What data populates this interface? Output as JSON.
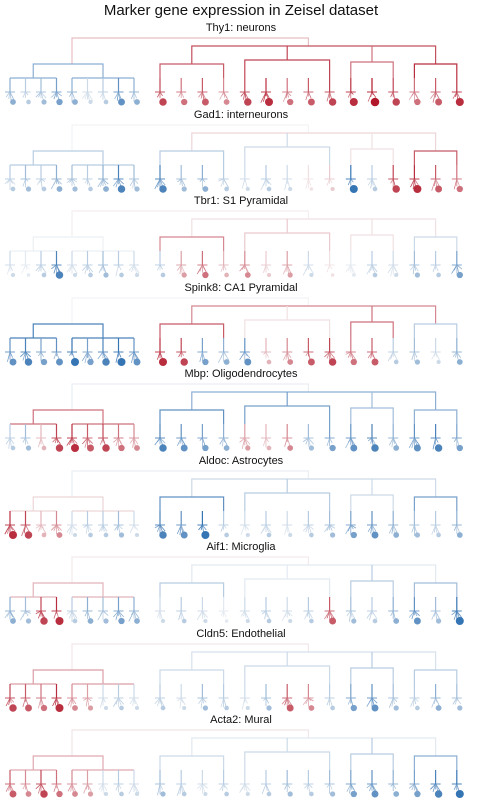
{
  "title": "Marker gene expression in Zeisel dataset",
  "colors": {
    "high": "#b2182b",
    "mid": "#f7f7f7",
    "low": "#2166ac"
  },
  "chart_data": [
    {
      "type": "dendrogram",
      "gene": "Thy1",
      "title": "Thy1: neurons",
      "branch_expression": {
        "astro_oligo": -0.5,
        "neurons": 0.75,
        "n1": 0.7,
        "n2": 0.8,
        "n3": 0.6,
        "n4": 0.9
      },
      "cluster_expression": [
        -0.5,
        -0.3,
        -0.4,
        -0.6,
        -0.5,
        -0.2,
        -0.3,
        -0.7,
        -0.5,
        0.8,
        0.6,
        0.7,
        0.5,
        0.8,
        0.9,
        0.6,
        0.7,
        0.8,
        0.9,
        1.0,
        0.8,
        0.6,
        0.7,
        0.9
      ]
    },
    {
      "type": "dendrogram",
      "gene": "Gad1",
      "title": "Gad1: interneurons",
      "branch_expression": {
        "astro_oligo": -0.3,
        "neurons": 0.15,
        "n1": -0.3,
        "n2": -0.2,
        "n3": 0.1,
        "n4": 0.7
      },
      "cluster_expression": [
        -0.3,
        -0.4,
        -0.3,
        -0.5,
        -0.4,
        -0.3,
        -0.5,
        -0.8,
        -0.4,
        -0.8,
        -0.4,
        -0.5,
        -0.3,
        -0.2,
        -0.3,
        -0.2,
        0.1,
        0.2,
        -0.9,
        -0.3,
        0.8,
        0.9,
        0.7,
        0.6
      ]
    },
    {
      "type": "dendrogram",
      "gene": "Tbr1",
      "title": "Tbr1: S1 Pyramidal",
      "branch_expression": {
        "astro_oligo": -0.05,
        "neurons": 0.1,
        "n1": 0.5,
        "n2": 0.2,
        "n3": 0.1,
        "n4": -0.2
      },
      "cluster_expression": [
        -0.2,
        -0.1,
        -0.3,
        -0.8,
        -0.2,
        -0.3,
        -0.4,
        -0.3,
        -0.2,
        -0.3,
        0.4,
        0.6,
        0.3,
        0.5,
        0.2,
        0.4,
        -0.2,
        0.1,
        -0.1,
        -0.3,
        -0.2,
        -0.4,
        -0.3,
        -0.6
      ]
    },
    {
      "type": "dendrogram",
      "gene": "Spink8",
      "title": "Spink8: CA1 Pyramidal",
      "branch_expression": {
        "astro_oligo": -0.8,
        "neurons": 0.5,
        "n1": 0.7,
        "n2": 0.1,
        "n3": 0.6,
        "n4": -0.3
      },
      "cluster_expression": [
        -0.7,
        -0.8,
        -0.6,
        -0.7,
        -0.9,
        -0.6,
        -0.8,
        -0.9,
        -0.7,
        0.9,
        0.8,
        -0.6,
        -0.5,
        -0.7,
        0.3,
        0.5,
        0.7,
        0.8,
        0.6,
        0.7,
        -0.3,
        -0.4,
        -0.2,
        -0.5
      ]
    },
    {
      "type": "dendrogram",
      "gene": "Mbp",
      "title": "Mbp: Oligodendrocytes",
      "branch_expression": {
        "astro_oligo": 0.6,
        "neurons": -0.5,
        "n1": -0.7,
        "n2": -0.6,
        "n3": -0.4,
        "n4": -0.5
      },
      "cluster_expression": [
        -0.3,
        -0.4,
        0.3,
        0.8,
        0.9,
        0.7,
        0.8,
        0.6,
        0.5,
        -0.8,
        -0.7,
        -0.6,
        -0.5,
        0.4,
        0.3,
        0.5,
        -0.4,
        -0.6,
        -0.7,
        -0.8,
        -0.5,
        -0.7,
        -0.8,
        -0.6
      ]
    },
    {
      "type": "dendrogram",
      "gene": "Aldoc",
      "title": "Aldoc: Astrocytes",
      "branch_expression": {
        "astro_oligo": 0.15,
        "neurons": -0.2,
        "n1": -0.7,
        "n2": -0.3,
        "n3": -0.2,
        "n4": -0.6
      },
      "cluster_expression": [
        0.9,
        0.8,
        0.3,
        0.5,
        -0.2,
        -0.3,
        -0.3,
        -0.4,
        -0.2,
        -0.8,
        -0.7,
        -0.9,
        -0.3,
        -0.2,
        -0.3,
        -0.2,
        -0.3,
        -0.4,
        -0.6,
        -0.7,
        -0.5,
        -0.4,
        -0.3,
        -0.5
      ]
    },
    {
      "type": "dendrogram",
      "gene": "Aif1",
      "title": "Aif1: Microglia",
      "branch_expression": {
        "astro_oligo": 0.3,
        "neurons": -0.1,
        "n1": -0.3,
        "n2": -0.1,
        "n3": -0.3,
        "n4": -0.4
      },
      "cluster_expression": [
        -0.5,
        -0.4,
        0.8,
        0.9,
        -0.3,
        -0.5,
        -0.4,
        -0.6,
        -0.5,
        -0.2,
        -0.3,
        -0.2,
        -0.1,
        -0.2,
        -0.3,
        -0.2,
        -0.3,
        0.7,
        -0.4,
        -0.3,
        -0.5,
        -0.7,
        -0.4,
        -0.9
      ]
    },
    {
      "type": "dendrogram",
      "gene": "Cldn5",
      "title": "Cldn5: Endothelial",
      "branch_expression": {
        "astro_oligo": 0.4,
        "neurons": -0.15,
        "n1": -0.2,
        "n2": -0.2,
        "n3": -0.3,
        "n4": -0.3
      },
      "cluster_expression": [
        0.8,
        0.7,
        0.6,
        0.9,
        0.5,
        0.4,
        -0.2,
        -0.3,
        -0.2,
        -0.3,
        -0.2,
        -0.4,
        -0.3,
        -0.2,
        -0.4,
        0.7,
        0.5,
        -0.3,
        -0.6,
        -0.7,
        -0.4,
        -0.3,
        -0.5,
        -0.4
      ]
    },
    {
      "type": "dendrogram",
      "gene": "Acta2",
      "title": "Acta2: Mural",
      "branch_expression": {
        "astro_oligo": 0.35,
        "neurons": -0.1,
        "n1": -0.2,
        "n2": -0.2,
        "n3": -0.3,
        "n4": -0.5
      },
      "cluster_expression": [
        0.7,
        0.5,
        0.8,
        0.6,
        0.5,
        0.4,
        -0.2,
        -0.3,
        -0.2,
        -0.4,
        -0.3,
        -0.2,
        -0.3,
        -0.2,
        -0.3,
        -0.4,
        -0.3,
        -0.4,
        -0.6,
        -0.7,
        -0.5,
        -0.6,
        -0.8,
        -0.9
      ]
    }
  ]
}
